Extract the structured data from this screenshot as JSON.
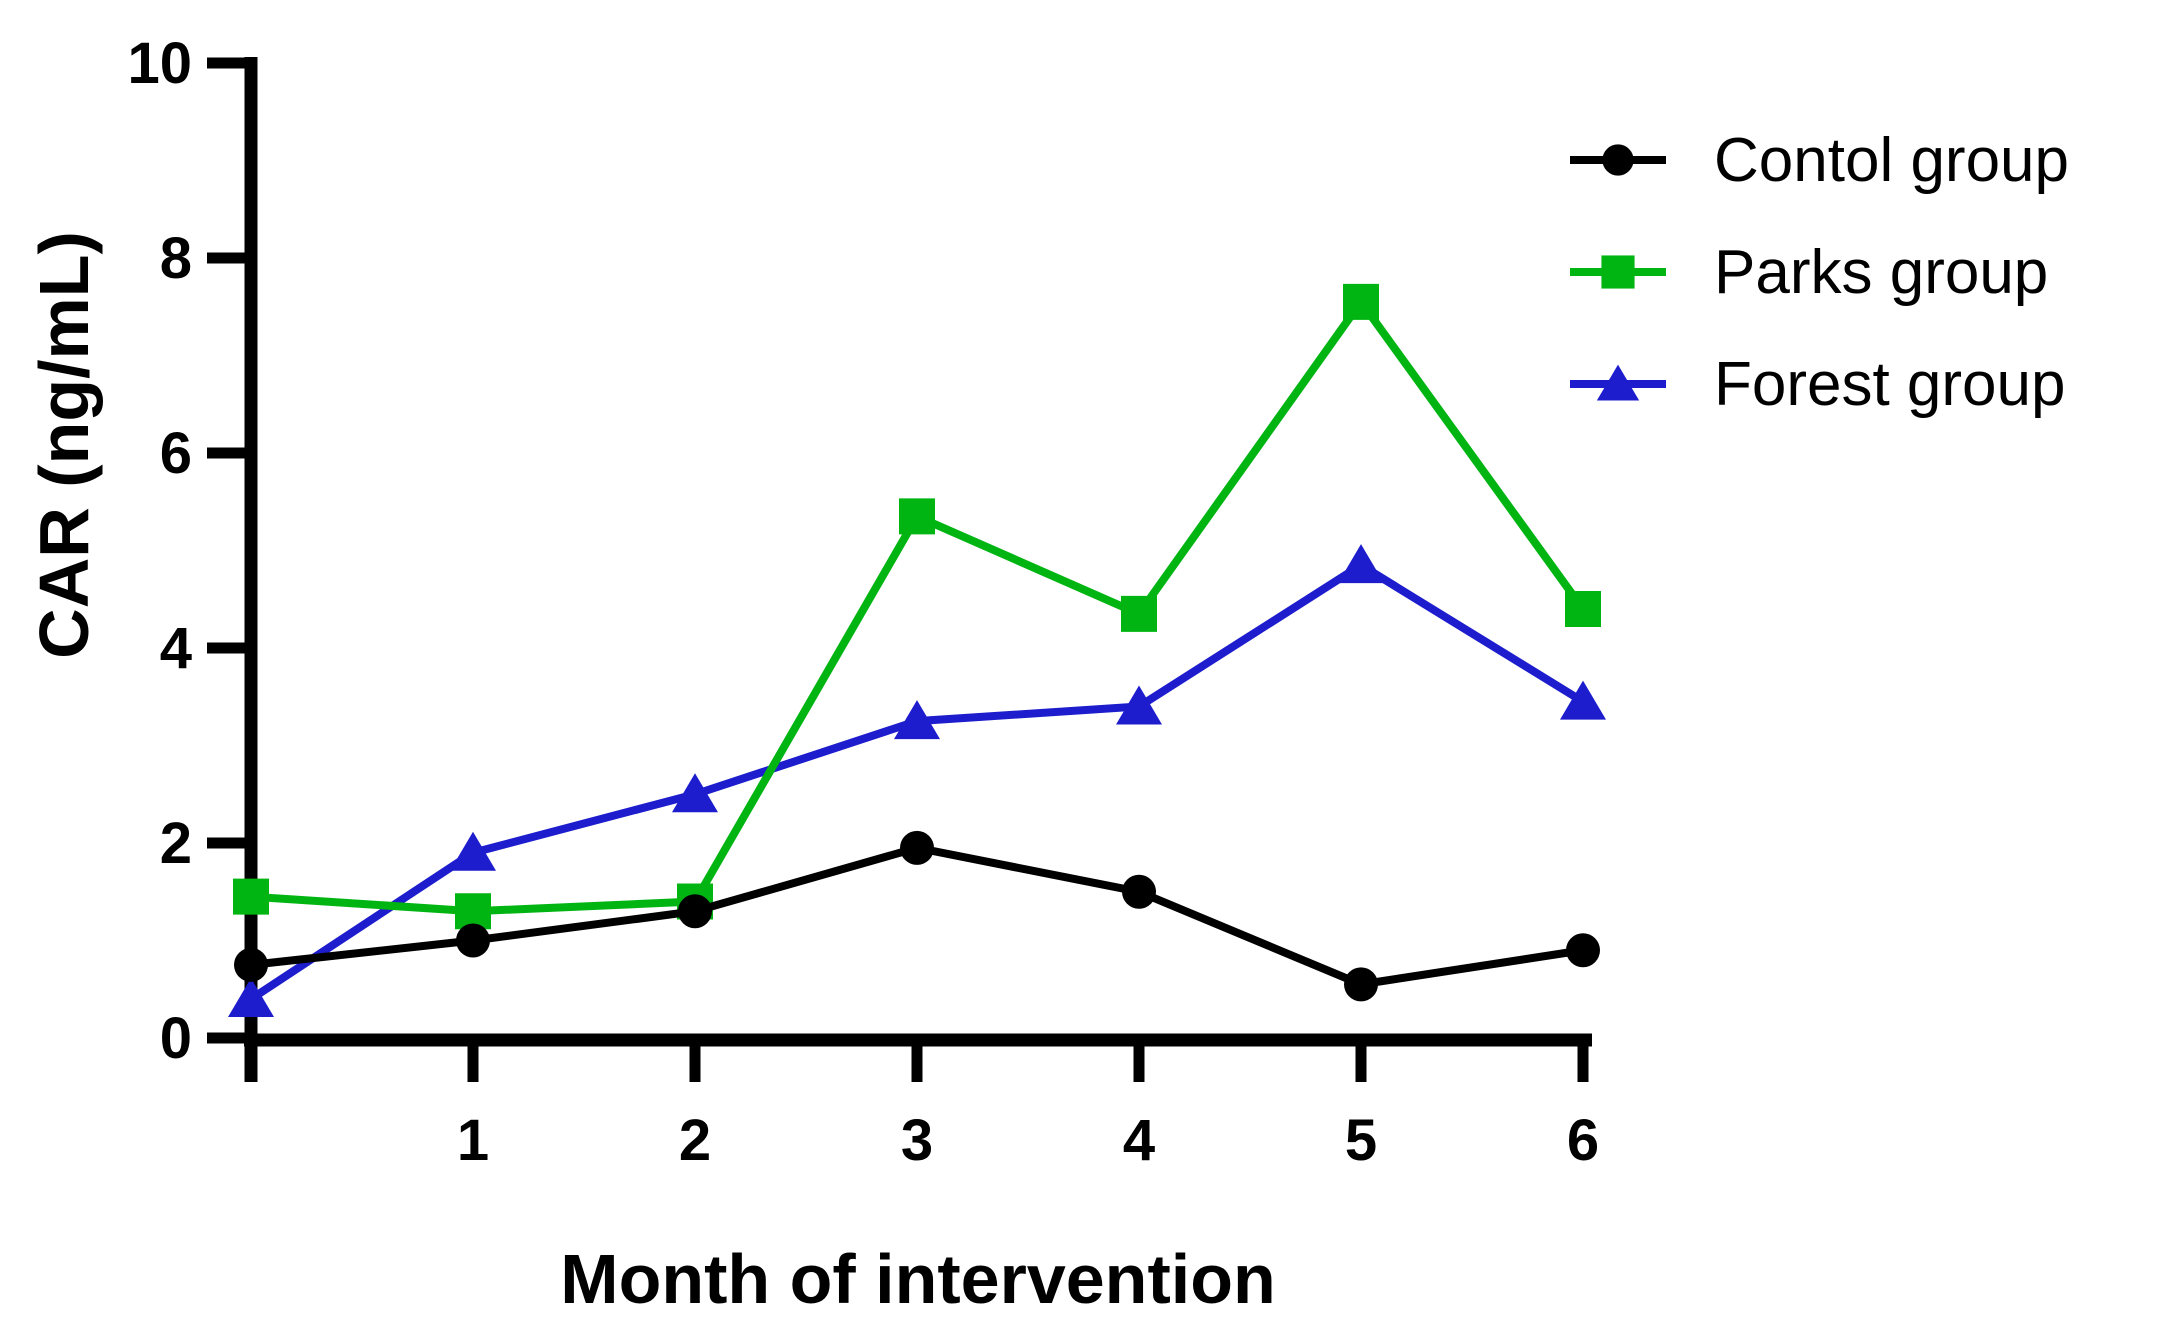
{
  "chart_data": {
    "type": "line",
    "title": "",
    "xlabel": "Month of intervention",
    "ylabel": "CAR (ng/mL)",
    "x": [
      0,
      1,
      2,
      3,
      4,
      5,
      6
    ],
    "x_tick_labels": [
      "1",
      "2",
      "3",
      "4",
      "5",
      "6"
    ],
    "x_ticks": [
      1,
      2,
      3,
      4,
      5,
      6
    ],
    "y_tick_labels": [
      "0",
      "2",
      "4",
      "6",
      "8",
      "10"
    ],
    "y_ticks": [
      0,
      2,
      4,
      6,
      8,
      10
    ],
    "xlim": [
      0,
      6
    ],
    "ylim": [
      0,
      10
    ],
    "grid": false,
    "legend_position": "top-right",
    "axis_color": "#000000",
    "series": [
      {
        "name": "Contol group",
        "marker": "circle",
        "color": "#000000",
        "values": [
          0.75,
          1.0,
          1.3,
          1.95,
          1.5,
          0.55,
          0.9
        ]
      },
      {
        "name": "Parks group",
        "marker": "square",
        "color": "#00b412",
        "values": [
          1.45,
          1.3,
          1.4,
          5.35,
          4.35,
          7.55,
          4.4
        ]
      },
      {
        "name": "Forest group",
        "marker": "triangle",
        "color": "#1d1dcd",
        "values": [
          0.4,
          1.9,
          2.5,
          3.25,
          3.4,
          4.85,
          3.45
        ]
      }
    ]
  }
}
